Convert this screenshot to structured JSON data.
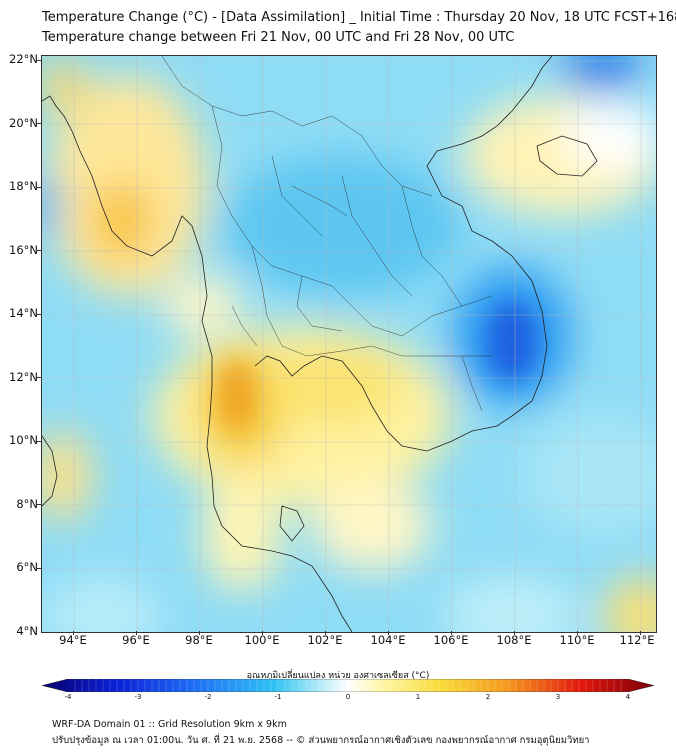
{
  "header": {
    "title_line1": "Temperature Change (°C) - [Data Assimilation] _ Initial Time : Thursday 20 Nov, 18 UTC FCST+168",
    "title_line2": "Temperature change between Fri 21 Nov, 00 UTC and Fri 28 Nov, 00 UTC"
  },
  "map": {
    "lat_labels": [
      "22°N",
      "20°N",
      "18°N",
      "16°N",
      "14°N",
      "12°N",
      "10°N",
      "8°N",
      "6°N",
      "4°N"
    ],
    "lon_labels": [
      "94°E",
      "96°E",
      "98°E",
      "100°E",
      "102°E",
      "104°E",
      "106°E",
      "108°E",
      "110°E",
      "112°E"
    ],
    "lat_range": [
      4,
      22.2
    ],
    "lon_range": [
      93,
      112.4
    ]
  },
  "colorbar": {
    "label": "อุณหภูมิเปลี่ยนแปลง หน่วย องศาเซลเซียส (°C)",
    "ticks": [
      "-4",
      "-3",
      "-2",
      "-1",
      "0",
      "1",
      "2",
      "3",
      "4"
    ],
    "range": [
      -4,
      4
    ],
    "colors": [
      "#08006e",
      "#0a1fd6",
      "#1e6ff5",
      "#2fc3f2",
      "#bfeefa",
      "#ffffff",
      "#fff8b0",
      "#f9dc3a",
      "#f59a1f",
      "#e3170d",
      "#7a0008"
    ]
  },
  "footer": {
    "line1": "WRF-DA Domain 01 :: Grid Resolution 9km x 9km",
    "line2": "ปรับปรุงข้อมูล ณ เวลา 01:00น. วัน ศ. ที่ 21 พ.ย. 2568 -- © ส่วนพยากรณ์อากาศเชิงตัวเลข กองพยากรณ์อากาศ กรมอุตุนิยมวิทยา"
  }
}
